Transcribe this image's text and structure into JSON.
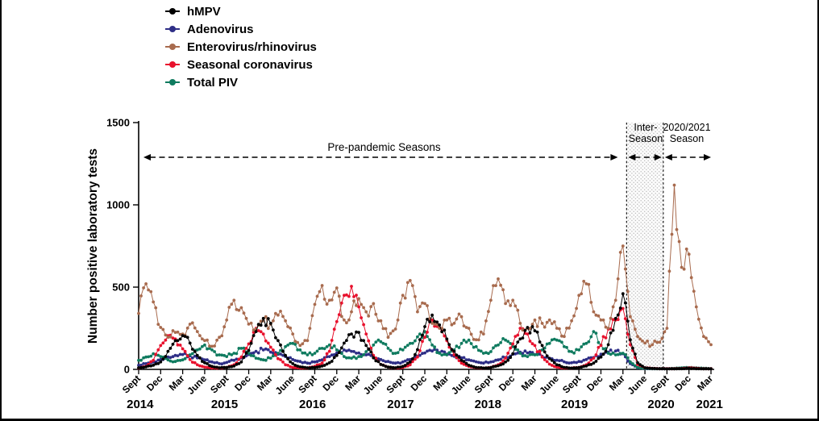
{
  "figure": {
    "annotations": {
      "pre_pandemic": "Pre-pandemic Seasons",
      "inter_season": [
        "Inter-",
        "Season"
      ],
      "season_2020_21": [
        "2020/2021",
        "Season"
      ]
    }
  },
  "chart_data": {
    "type": "line",
    "title": "",
    "ylabel": "Number positive laboratory tests",
    "ylim": [
      0,
      1500
    ],
    "yticks": [
      0,
      500,
      1000,
      1500
    ],
    "grid": false,
    "legend_position": "top-left",
    "x_start_label": "Sept 2014",
    "x_end_label": "Mar 2021",
    "months_span": 78,
    "x_tick_interval": 3,
    "x_tick_labels": [
      "Sept",
      "Dec",
      "Mar",
      "June",
      "Sept",
      "Dec",
      "Mar",
      "June",
      "Sept",
      "Dec",
      "Mar",
      "June",
      "Sept",
      "Dec",
      "Mar",
      "June",
      "Sept",
      "Dec",
      "Mar",
      "June",
      "Sept",
      "Dec",
      "Mar",
      "June",
      "Sept",
      "Dec",
      "Mar"
    ],
    "year_labels": [
      {
        "label": "2014",
        "month": 0.2
      },
      {
        "label": "2015",
        "month": 11.7
      },
      {
        "label": "2016",
        "month": 23.7
      },
      {
        "label": "2017",
        "month": 35.7
      },
      {
        "label": "2018",
        "month": 47.6
      },
      {
        "label": "2019",
        "month": 59.4
      },
      {
        "label": "2020",
        "month": 71.2
      },
      {
        "label": "2021",
        "month": 77.8
      }
    ],
    "regions": {
      "pre_pandemic": {
        "label": "Pre-pandemic Seasons",
        "start_month": 0,
        "end_month": 65.3,
        "shaded": false
      },
      "inter_season": {
        "label": "Inter-Season",
        "start_month": 66.5,
        "end_month": 71.5,
        "shaded": true
      },
      "season_2020_21": {
        "label": "2020/2021 Season",
        "start_month": 71.5,
        "end_month": 78,
        "shaded": false
      }
    },
    "series": [
      {
        "name": "hMPV",
        "color": "#000000",
        "values": [
          10,
          15,
          25,
          45,
          110,
          175,
          205,
          160,
          85,
          40,
          18,
          10,
          12,
          20,
          45,
          115,
          230,
          310,
          280,
          175,
          85,
          35,
          15,
          10,
          12,
          20,
          40,
          85,
          160,
          215,
          225,
          145,
          70,
          30,
          14,
          10,
          18,
          45,
          120,
          260,
          330,
          270,
          185,
          110,
          55,
          25,
          12,
          8,
          12,
          22,
          45,
          95,
          185,
          255,
          235,
          145,
          65,
          28,
          12,
          8,
          12,
          20,
          38,
          75,
          150,
          310,
          460,
          180,
          40,
          10,
          6,
          4,
          3,
          3,
          4,
          6,
          4,
          3,
          3
        ]
      },
      {
        "name": "Adenovirus",
        "color": "#2e2e86",
        "values": [
          25,
          35,
          45,
          60,
          75,
          85,
          90,
          82,
          70,
          58,
          45,
          35,
          42,
          55,
          70,
          90,
          110,
          118,
          105,
          92,
          78,
          60,
          48,
          38,
          45,
          58,
          78,
          100,
          118,
          110,
          100,
          88,
          75,
          60,
          48,
          38,
          45,
          60,
          80,
          100,
          112,
          102,
          92,
          80,
          70,
          58,
          46,
          38,
          45,
          58,
          72,
          92,
          105,
          100,
          90,
          80,
          68,
          56,
          46,
          40,
          48,
          60,
          72,
          92,
          105,
          112,
          95,
          35,
          10,
          5,
          4,
          4,
          4,
          5,
          8,
          10,
          7,
          5,
          4
        ]
      },
      {
        "name": "Enterovirus/rhinovirus",
        "color": "#a86b4e",
        "values": [
          340,
          520,
          410,
          255,
          195,
          225,
          215,
          275,
          230,
          175,
          140,
          195,
          300,
          420,
          375,
          275,
          245,
          295,
          275,
          330,
          295,
          215,
          145,
          175,
          395,
          510,
          420,
          495,
          300,
          350,
          430,
          350,
          400,
          295,
          195,
          245,
          450,
          540,
          350,
          400,
          280,
          250,
          300,
          280,
          320,
          250,
          180,
          215,
          420,
          550,
          400,
          420,
          280,
          250,
          300,
          280,
          300,
          250,
          200,
          295,
          450,
          520,
          350,
          300,
          250,
          420,
          750,
          320,
          200,
          160,
          150,
          165,
          250,
          1120,
          620,
          700,
          380,
          200,
          150
        ]
      },
      {
        "name": "Seasonal coronavirus",
        "color": "#e8112d",
        "values": [
          8,
          18,
          55,
          145,
          205,
          185,
          125,
          60,
          28,
          14,
          8,
          8,
          12,
          28,
          75,
          155,
          250,
          215,
          135,
          65,
          28,
          12,
          8,
          8,
          18,
          38,
          110,
          290,
          450,
          505,
          380,
          215,
          85,
          30,
          14,
          8,
          12,
          28,
          75,
          195,
          300,
          255,
          175,
          88,
          38,
          18,
          10,
          8,
          12,
          28,
          68,
          155,
          250,
          215,
          145,
          75,
          32,
          14,
          8,
          8,
          12,
          28,
          68,
          145,
          245,
          300,
          370,
          150,
          30,
          10,
          6,
          4,
          4,
          4,
          5,
          9,
          7,
          4,
          4
        ]
      },
      {
        "name": "Total PIV",
        "color": "#0f7b5f",
        "values": [
          55,
          75,
          95,
          78,
          58,
          48,
          58,
          88,
          118,
          148,
          118,
          88,
          78,
          98,
          128,
          98,
          68,
          58,
          68,
          98,
          138,
          158,
          118,
          88,
          98,
          128,
          148,
          118,
          78,
          68,
          78,
          108,
          148,
          168,
          128,
          98,
          118,
          158,
          198,
          230,
          148,
          98,
          88,
          118,
          158,
          178,
          138,
          98,
          108,
          148,
          178,
          138,
          98,
          78,
          88,
          118,
          158,
          178,
          138,
          108,
          118,
          158,
          230,
          148,
          98,
          88,
          98,
          45,
          12,
          6,
          4,
          4,
          4,
          6,
          9,
          11,
          9,
          7,
          5
        ]
      }
    ]
  }
}
